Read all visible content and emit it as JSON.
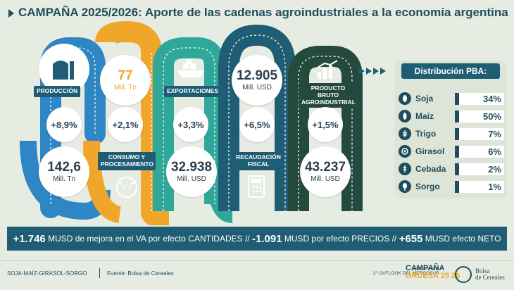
{
  "title": "CAMPAÑA 2025/2026: Aporte de las cadenas agroindustriales a la economía argentina",
  "columns": {
    "produccion": {
      "label": "PRODUCCIÓN",
      "pct": "+8,9%",
      "value": "142,6",
      "unit": "Mill. Tn"
    },
    "consumo": {
      "top_value": "77",
      "top_unit": "Mill. Tn",
      "pct": "+2,1%",
      "label": "CONSUMO Y PROCESAMIENTO"
    },
    "exportaciones": {
      "label": "EXPORTACIONES",
      "pct": "+3,3%",
      "value": "32.938",
      "unit": "Mill. USD"
    },
    "recaudacion": {
      "top_value": "12.905",
      "top_unit": "Mill. USD",
      "pct": "+6,5%",
      "label": "RECAUDACIÓN FISCAL"
    },
    "pba": {
      "label": "PRODUCTO BRUTO AGROINDUSTRIAL",
      "pct": "+1,5%",
      "value": "43.237",
      "unit": "Mill. USD"
    }
  },
  "distribucion": {
    "title": "Distribución PBA:",
    "items": [
      {
        "name": "Soja",
        "value": "34%"
      },
      {
        "name": "Maíz",
        "value": "50%"
      },
      {
        "name": "Trigo",
        "value": "7%"
      },
      {
        "name": "Girasol",
        "value": "6%"
      },
      {
        "name": "Cebada",
        "value": "2%"
      },
      {
        "name": "Sorgo",
        "value": "1%"
      }
    ]
  },
  "banner": {
    "v1": "+1.746",
    "t1": " MUSD de mejora en el VA por efecto CANTIDADES // ",
    "v2": "-1.091",
    "t2": " MUSD por efecto PRECIOS // ",
    "v3": "+655",
    "t3": " MUSD efecto NETO"
  },
  "footer": {
    "crops": "SOJA-MAÍZ-GIRASOL-SORGO",
    "source": "Fuente: Bolsa de Cereales",
    "launch_line1": "Lanzamiento",
    "launch_line2": "2° OUTLOOK DEL MERCOSUR",
    "campana": "CAMPAÑA",
    "gruesa": "GRUESA 25 26",
    "bolsa1": "Bolsa",
    "bolsa2": "de Cereales"
  },
  "colors": {
    "navy": "#1e5d73",
    "blue": "#2f86c4",
    "orange": "#f0a62a",
    "teal": "#2fa89a",
    "dark": "#234a3c"
  }
}
